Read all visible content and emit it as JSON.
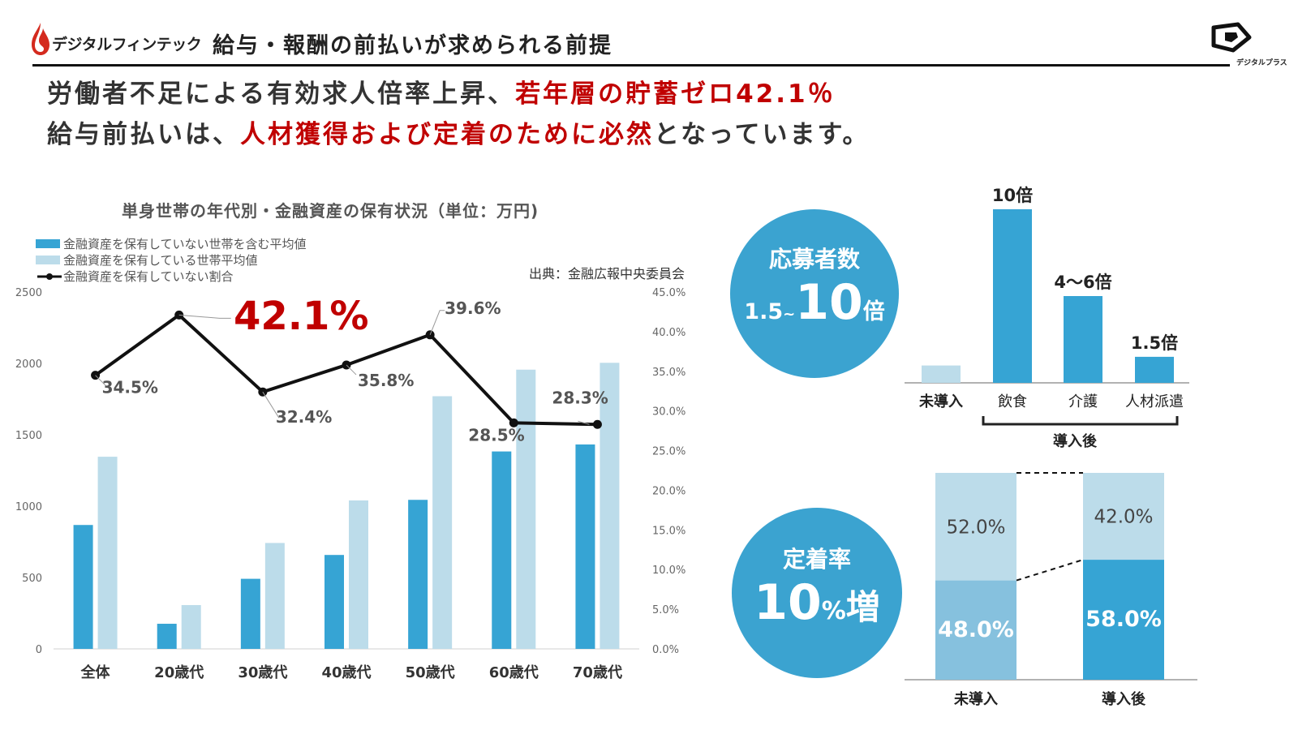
{
  "header": {
    "brand": "デジタルフィンテック",
    "title": "給与・報酬の前払いが求められる前提",
    "logo_caption": "デジタルプラス"
  },
  "headline": {
    "line1_a": "労働者不足による有効求人倍率上昇、",
    "line1_b": "若年層の貯蓄ゼロ42.1％",
    "line2_a": "給与前払いは、",
    "line2_b": "人材獲得および定着のために必然",
    "line2_c": "となっています。"
  },
  "colors": {
    "bar_dark": "#36a4d4",
    "bar_light": "#bcdcea",
    "line": "#111111",
    "accent_red": "#c00000",
    "circle": "#3ba3d0"
  },
  "main_chart": {
    "title": "単身世帯の年代別・金融資産の保有状況（単位：万円)",
    "source": "出典：金融広報中央委員会",
    "legend": [
      "金融資産を保有していない世帯を含む平均値",
      "金融資産を保有している世帯平均値",
      "金融資産を保有していない割合"
    ],
    "highlight_label": "42.1%"
  },
  "chart_data": [
    {
      "type": "bar",
      "title": "単身世帯の年代別・金融資産の保有状況（単位：万円)",
      "categories": [
        "全体",
        "20歳代",
        "30歳代",
        "40歳代",
        "50歳代",
        "60歳代",
        "70歳代"
      ],
      "series": [
        {
          "name": "金融資産を保有していない世帯を含む平均値",
          "type": "bar",
          "axis": "left",
          "values": [
            868,
            176,
            491,
            658,
            1044,
            1383,
            1432
          ]
        },
        {
          "name": "金融資産を保有している世帯平均値",
          "type": "bar",
          "axis": "left",
          "values": [
            1346,
            307,
            742,
            1040,
            1770,
            1956,
            2004
          ]
        },
        {
          "name": "金融資産を保有していない割合",
          "type": "line",
          "axis": "right",
          "values": [
            34.5,
            42.1,
            32.4,
            35.8,
            39.6,
            28.5,
            28.3
          ],
          "labels": [
            "34.5%",
            "",
            "32.4%",
            "35.8%",
            "39.6%",
            "28.5%",
            "28.3%"
          ]
        }
      ],
      "ylim": [
        0,
        2500
      ],
      "yticks": [
        "0",
        "500",
        "1000",
        "1500",
        "2000",
        "2500"
      ],
      "y2lim": [
        0,
        45
      ],
      "y2ticks": [
        "0.0%",
        "5.0%",
        "10.0%",
        "15.0%",
        "20.0%",
        "25.0%",
        "30.0%",
        "35.0%",
        "40.0%",
        "45.0%"
      ]
    },
    {
      "type": "bar",
      "title": "応募者数",
      "categories": [
        "未導入",
        "飲食",
        "介護",
        "人材派遣"
      ],
      "values": [
        1.0,
        10,
        5,
        1.5
      ],
      "data_labels": [
        "",
        "10倍",
        "4～6倍",
        "1.5倍"
      ],
      "group_label": "導入後"
    },
    {
      "type": "bar",
      "title": "定着率",
      "stacked": true,
      "categories": [
        "未導入",
        "導入後"
      ],
      "series": [
        {
          "name": "lower",
          "values": [
            48.0,
            58.0
          ],
          "labels": [
            "48.0%",
            "58.0%"
          ]
        },
        {
          "name": "upper",
          "values": [
            52.0,
            42.0
          ],
          "labels": [
            "52.0%",
            "42.0%"
          ]
        }
      ]
    }
  ],
  "circles": {
    "applicants": {
      "label": "応募者数",
      "from": "1.5",
      "tilde": "~",
      "to": "10",
      "unit": "倍"
    },
    "retention": {
      "label": "定着率",
      "value": "10",
      "pct": "%",
      "suffix": "増"
    }
  }
}
